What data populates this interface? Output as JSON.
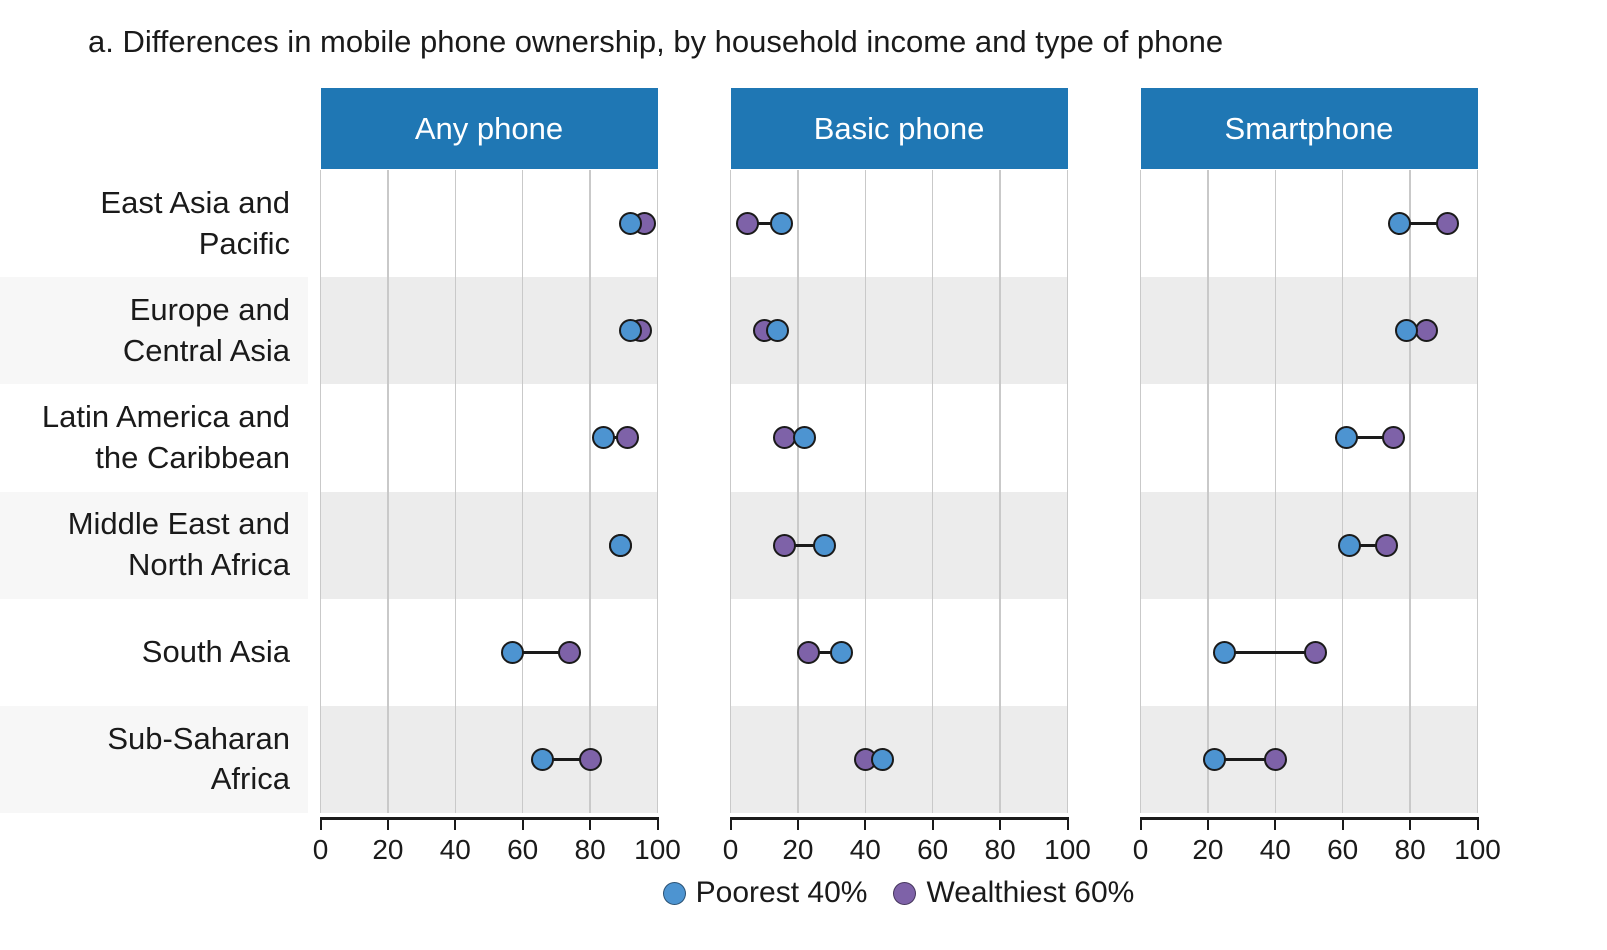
{
  "title": "a. Differences in mobile phone ownership, by household income and type of phone",
  "colors": {
    "header_bg": "#1f77b4",
    "header_text": "#ffffff",
    "poorest": "#4d94d1",
    "wealthiest": "#7e62a8",
    "band": "#ececec",
    "label_band": "#f7f7f7",
    "gridline": "#c9c9c9",
    "axis": "#1a1a1a",
    "dot_stroke": "#1a1a1a",
    "text": "#1a1a1a"
  },
  "legend": {
    "items": [
      {
        "label": "Poorest 40%",
        "color": "#4d94d1"
      },
      {
        "label": "Wealthiest 60%",
        "color": "#7e62a8"
      }
    ]
  },
  "chart_data": {
    "type": "dumbbell",
    "title": "a. Differences in mobile phone ownership, by household income and type of phone",
    "xlim": [
      0,
      100
    ],
    "xticks": [
      "0",
      "20",
      "40",
      "60",
      "80",
      "100"
    ],
    "grid": true,
    "legend_position": "bottom",
    "categories": [
      "East Asia and Pacific",
      "Europe and Central Asia",
      "Latin America and the Caribbean",
      "Middle East and North Africa",
      "South Asia",
      "Sub-Saharan Africa"
    ],
    "category_label_lines": [
      [
        "East Asia and",
        "Pacific"
      ],
      [
        "Europe and",
        "Central Asia"
      ],
      [
        "Latin America and",
        "the Caribbean"
      ],
      [
        "Middle East and",
        "North Africa"
      ],
      [
        "South Asia"
      ],
      [
        "Sub-Saharan",
        "Africa"
      ]
    ],
    "panels": [
      {
        "label": "Any phone",
        "series": [
          {
            "name": "Poorest 40%",
            "values": [
              92,
              92,
              84,
              89,
              57,
              66
            ]
          },
          {
            "name": "Wealthiest 60%",
            "values": [
              96,
              95,
              91,
              89,
              74,
              80
            ]
          }
        ]
      },
      {
        "label": "Basic phone",
        "series": [
          {
            "name": "Poorest 40%",
            "values": [
              15,
              14,
              22,
              28,
              33,
              45
            ]
          },
          {
            "name": "Wealthiest 60%",
            "values": [
              5,
              10,
              16,
              16,
              23,
              40
            ]
          }
        ]
      },
      {
        "label": "Smartphone",
        "series": [
          {
            "name": "Poorest 40%",
            "values": [
              77,
              79,
              61,
              62,
              25,
              22
            ]
          },
          {
            "name": "Wealthiest 60%",
            "values": [
              91,
              85,
              75,
              73,
              52,
              40
            ]
          }
        ]
      }
    ]
  }
}
